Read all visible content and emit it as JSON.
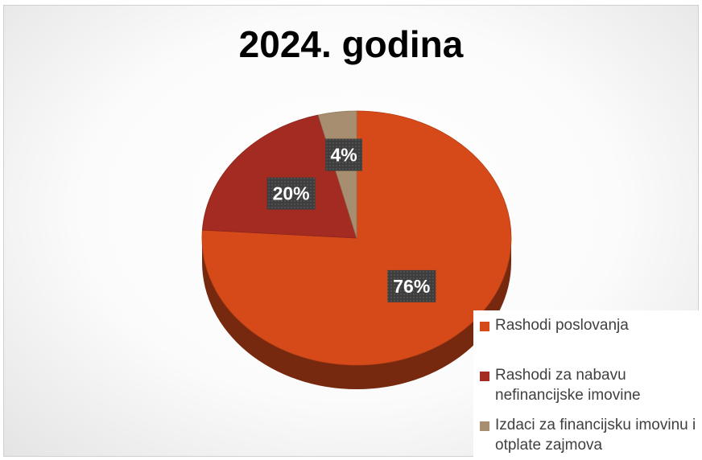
{
  "chart_data": {
    "type": "pie",
    "title": "2024. godina",
    "categories": [
      "Rashodi poslovanja",
      "Rashodi za nabavu nefinancijske imovine",
      "Izdaci za financijsku imovinu i otplate zajmova"
    ],
    "values": [
      76,
      20,
      4
    ],
    "labels": [
      "76%",
      "20%",
      "4%"
    ],
    "colors": [
      "#D64A1A",
      "#A32B22",
      "#A88E70"
    ],
    "legend_position": "bottom-right",
    "style": "3d"
  }
}
